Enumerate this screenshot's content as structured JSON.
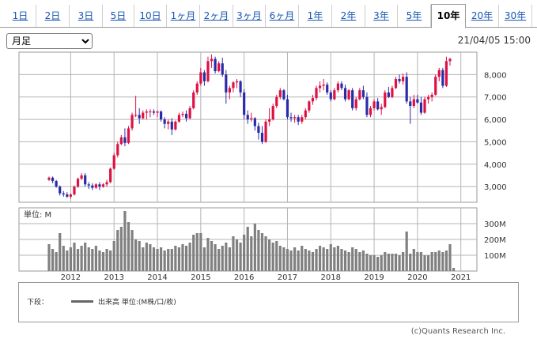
{
  "tabs": [
    {
      "label": "1日",
      "active": false
    },
    {
      "label": "2日",
      "active": false
    },
    {
      "label": "3日",
      "active": false
    },
    {
      "label": "5日",
      "active": false
    },
    {
      "label": "10日",
      "active": false
    },
    {
      "label": "1ヶ月",
      "active": false
    },
    {
      "label": "2ヶ月",
      "active": false
    },
    {
      "label": "3ヶ月",
      "active": false
    },
    {
      "label": "6ヶ月",
      "active": false
    },
    {
      "label": "1年",
      "active": false
    },
    {
      "label": "2年",
      "active": false
    },
    {
      "label": "3年",
      "active": false
    },
    {
      "label": "5年",
      "active": false
    },
    {
      "label": "10年",
      "active": true
    },
    {
      "label": "20年",
      "active": false
    },
    {
      "label": "30年",
      "active": false
    }
  ],
  "period_select": {
    "selected": "月足"
  },
  "timestamp": "21/04/05 15:00",
  "legend": {
    "prefix": "下段：",
    "label": "出来高 単位:(M株/口/枚)"
  },
  "copyright": "(c)Quants Research Inc.",
  "colors": {
    "up": "#dd1144",
    "down": "#2b2ba8",
    "volume": "#808080",
    "grid": "#b4b4b4"
  },
  "chart_data": {
    "type": "candlestick",
    "interval": "monthly",
    "x_tick_labels": [
      "2012",
      "2013",
      "2014",
      "2015",
      "2016",
      "2017",
      "2018",
      "2019",
      "2020",
      "2021"
    ],
    "price_axis": {
      "ylim": [
        2300,
        9000
      ],
      "ticks": [
        "3,000",
        "4,000",
        "5,000",
        "6,000",
        "7,000",
        "8,000"
      ],
      "side": "right"
    },
    "volume_axis": {
      "unit_label": "単位: M",
      "ylim": [
        0,
        400
      ],
      "ticks": [
        "100M",
        "200M",
        "300M"
      ],
      "side": "right"
    },
    "start": "2011-07",
    "ohlc": [
      [
        3300,
        3450,
        3250,
        3400
      ],
      [
        3400,
        3450,
        3150,
        3250
      ],
      [
        3250,
        3300,
        2950,
        3000
      ],
      [
        3000,
        3050,
        2600,
        2700
      ],
      [
        2700,
        2800,
        2550,
        2650
      ],
      [
        2650,
        2750,
        2500,
        2550
      ],
      [
        2550,
        2700,
        2450,
        2650
      ],
      [
        2650,
        3050,
        2600,
        3000
      ],
      [
        3000,
        3400,
        2950,
        3350
      ],
      [
        3350,
        3600,
        3300,
        3500
      ],
      [
        3500,
        3600,
        3000,
        3100
      ],
      [
        3100,
        3200,
        2900,
        3050
      ],
      [
        3050,
        3150,
        2850,
        2950
      ],
      [
        2950,
        3150,
        2900,
        3100
      ],
      [
        3100,
        3200,
        2850,
        3000
      ],
      [
        3000,
        3150,
        2950,
        3100
      ],
      [
        3100,
        3300,
        3000,
        3200
      ],
      [
        3200,
        3850,
        3150,
        3800
      ],
      [
        3800,
        4500,
        3750,
        4400
      ],
      [
        4400,
        5000,
        4300,
        4900
      ],
      [
        4900,
        5300,
        4850,
        5200
      ],
      [
        5200,
        5600,
        4800,
        4950
      ],
      [
        4950,
        5700,
        4900,
        5600
      ],
      [
        5600,
        6300,
        5500,
        6200
      ],
      [
        6200,
        7050,
        6100,
        6200
      ],
      [
        6200,
        6500,
        5800,
        6050
      ],
      [
        6050,
        6400,
        6000,
        6300
      ],
      [
        6300,
        6450,
        6000,
        6350
      ],
      [
        6350,
        6450,
        6100,
        6350
      ],
      [
        6350,
        6450,
        6200,
        6300
      ],
      [
        6300,
        6400,
        6100,
        6350
      ],
      [
        6350,
        6400,
        5900,
        6000
      ],
      [
        6000,
        6100,
        5600,
        5800
      ],
      [
        5800,
        6000,
        5550,
        5900
      ],
      [
        5900,
        6050,
        5300,
        5550
      ],
      [
        5550,
        5950,
        5500,
        5900
      ],
      [
        5900,
        6300,
        5850,
        6200
      ],
      [
        6200,
        6350,
        6100,
        6250
      ],
      [
        6250,
        6400,
        5900,
        6050
      ],
      [
        6050,
        6600,
        6000,
        6500
      ],
      [
        6500,
        7300,
        6450,
        7200
      ],
      [
        7200,
        7700,
        7100,
        7600
      ],
      [
        7600,
        8300,
        7500,
        8100
      ],
      [
        8100,
        8200,
        7500,
        7700
      ],
      [
        7700,
        8800,
        7650,
        8600
      ],
      [
        8600,
        8900,
        8300,
        8700
      ],
      [
        8700,
        8800,
        8050,
        8150
      ],
      [
        8150,
        8600,
        8100,
        8500
      ],
      [
        8500,
        8750,
        7900,
        8000
      ],
      [
        8000,
        8200,
        6700,
        7200
      ],
      [
        7200,
        7500,
        6900,
        7400
      ],
      [
        7400,
        7700,
        7200,
        7650
      ],
      [
        7650,
        7800,
        7400,
        7700
      ],
      [
        7700,
        7750,
        7000,
        7200
      ],
      [
        7200,
        7350,
        6000,
        6200
      ],
      [
        6200,
        6400,
        5800,
        6000
      ],
      [
        6000,
        6300,
        5900,
        6050
      ],
      [
        6050,
        6100,
        5500,
        5700
      ],
      [
        5700,
        5850,
        5100,
        5400
      ],
      [
        5400,
        5700,
        4900,
        5000
      ],
      [
        5000,
        6000,
        4950,
        5900
      ],
      [
        5900,
        6500,
        5700,
        6000
      ],
      [
        6000,
        6700,
        5950,
        6600
      ],
      [
        6600,
        7100,
        6500,
        7000
      ],
      [
        7000,
        7400,
        6900,
        7300
      ],
      [
        7300,
        7350,
        6850,
        6900
      ],
      [
        6900,
        7100,
        6000,
        6100
      ],
      [
        6100,
        6300,
        5900,
        6050
      ],
      [
        6050,
        6200,
        5850,
        6100
      ],
      [
        6100,
        6200,
        5750,
        5900
      ],
      [
        5900,
        6200,
        5800,
        6100
      ],
      [
        6100,
        6500,
        6000,
        6400
      ],
      [
        6400,
        6850,
        6300,
        6800
      ],
      [
        6800,
        7100,
        6650,
        6950
      ],
      [
        6950,
        7500,
        6850,
        7400
      ],
      [
        7400,
        7700,
        7200,
        7500
      ],
      [
        7500,
        7800,
        7300,
        7550
      ],
      [
        7550,
        7650,
        7100,
        7200
      ],
      [
        7200,
        7300,
        6800,
        6900
      ],
      [
        6900,
        7400,
        6850,
        7300
      ],
      [
        7300,
        7700,
        7200,
        7600
      ],
      [
        7600,
        7700,
        7300,
        7400
      ],
      [
        7400,
        7550,
        6800,
        6900
      ],
      [
        6900,
        7350,
        6850,
        7300
      ],
      [
        7300,
        7400,
        6400,
        6500
      ],
      [
        6500,
        7000,
        6400,
        6900
      ],
      [
        6900,
        7400,
        6850,
        7300
      ],
      [
        7300,
        7500,
        6900,
        7000
      ],
      [
        7000,
        7200,
        6100,
        6200
      ],
      [
        6200,
        6600,
        6100,
        6500
      ],
      [
        6500,
        6900,
        6400,
        6800
      ],
      [
        6800,
        6950,
        6400,
        6450
      ],
      [
        6450,
        6700,
        6200,
        6550
      ],
      [
        6550,
        7300,
        6500,
        7200
      ],
      [
        7200,
        7450,
        6950,
        7000
      ],
      [
        7000,
        7500,
        6950,
        7400
      ],
      [
        7400,
        7900,
        7350,
        7800
      ],
      [
        7800,
        8000,
        7600,
        7700
      ],
      [
        7700,
        8050,
        7550,
        7900
      ],
      [
        7900,
        8100,
        6700,
        6800
      ],
      [
        6800,
        7000,
        5800,
        6600
      ],
      [
        6600,
        7100,
        6500,
        6900
      ],
      [
        6900,
        7100,
        6700,
        6750
      ],
      [
        6750,
        7000,
        6200,
        6300
      ],
      [
        6300,
        7000,
        6250,
        6900
      ],
      [
        6900,
        7100,
        6700,
        7000
      ],
      [
        7000,
        7200,
        6800,
        7100
      ],
      [
        7100,
        8000,
        7050,
        7900
      ],
      [
        7900,
        8300,
        7700,
        8200
      ],
      [
        8200,
        8300,
        7400,
        7500
      ],
      [
        7500,
        8800,
        7450,
        8600
      ],
      [
        8600,
        8750,
        8400,
        8700
      ]
    ],
    "volume": [
      170,
      140,
      120,
      240,
      160,
      130,
      150,
      180,
      140,
      160,
      180,
      150,
      140,
      160,
      130,
      120,
      140,
      130,
      190,
      260,
      280,
      380,
      310,
      260,
      200,
      190,
      150,
      180,
      170,
      150,
      140,
      150,
      130,
      140,
      140,
      160,
      150,
      170,
      160,
      180,
      230,
      240,
      240,
      150,
      210,
      190,
      170,
      140,
      160,
      180,
      150,
      220,
      200,
      180,
      230,
      280,
      220,
      300,
      260,
      240,
      220,
      200,
      180,
      190,
      160,
      150,
      140,
      130,
      150,
      130,
      160,
      140,
      130,
      120,
      140,
      160,
      150,
      140,
      170,
      150,
      160,
      140,
      130,
      120,
      150,
      140,
      120,
      130,
      110,
      100,
      100,
      90,
      100,
      120,
      110,
      110,
      110,
      100,
      120,
      250,
      110,
      140,
      120,
      120,
      100,
      100,
      120,
      120,
      130,
      120,
      130,
      170,
      20
    ]
  }
}
